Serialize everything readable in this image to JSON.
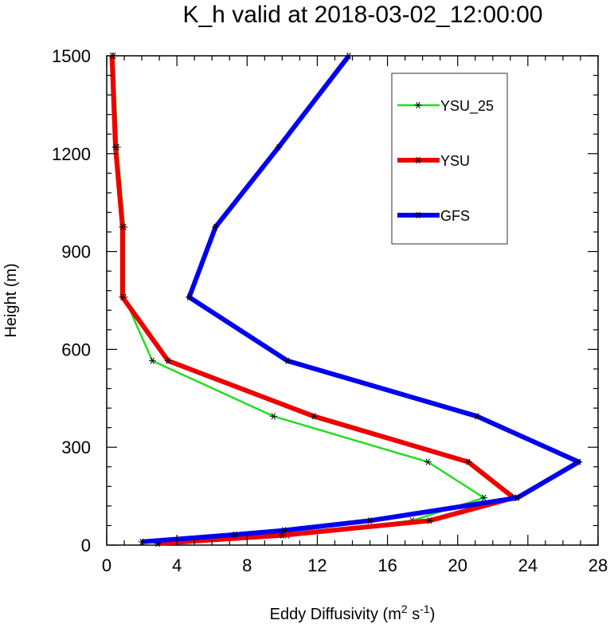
{
  "chart_data": {
    "type": "line",
    "title": "K_h valid at 2018-03-02_12:00:00",
    "xlabel_main": "Eddy Diffusivity (m",
    "xlabel_sup1": "2",
    "xlabel_mid": " s",
    "xlabel_sup2": "-1",
    "xlabel_end": ")",
    "ylabel": "Height (m)",
    "xlim": [
      0,
      28
    ],
    "ylim": [
      0,
      1500
    ],
    "xticks": [
      0,
      4,
      8,
      12,
      16,
      20,
      24,
      28
    ],
    "xtick_labels": [
      "0",
      "4",
      "8",
      "12",
      "16",
      "20",
      "24",
      "28"
    ],
    "yticks": [
      0,
      300,
      600,
      900,
      1200,
      1500
    ],
    "ytick_labels": [
      "0",
      "300",
      "600",
      "900",
      "1200",
      "1500"
    ],
    "legend_position": "top-right",
    "series": [
      {
        "name": "YSU_25",
        "color": "#22dd22",
        "width": "thin",
        "marker": "asterisk",
        "points": [
          [
            2.9,
            5
          ],
          [
            10.3,
            30
          ],
          [
            17.4,
            75
          ],
          [
            21.5,
            145
          ],
          [
            18.3,
            255
          ],
          [
            9.5,
            395
          ],
          [
            2.6,
            565
          ],
          [
            1.0,
            760
          ],
          [
            1.0,
            975
          ],
          [
            0.6,
            1220
          ],
          [
            0.4,
            1500
          ]
        ]
      },
      {
        "name": "YSU",
        "color": "#ee0000",
        "width": "thick",
        "marker": "asterisk",
        "points": [
          [
            2.9,
            5
          ],
          [
            10.0,
            30
          ],
          [
            18.4,
            75
          ],
          [
            23.2,
            145
          ],
          [
            20.6,
            255
          ],
          [
            11.8,
            395
          ],
          [
            3.5,
            565
          ],
          [
            0.9,
            760
          ],
          [
            0.9,
            975
          ],
          [
            0.5,
            1220
          ],
          [
            0.3,
            1500
          ]
        ]
      },
      {
        "name": "GFS",
        "color": "#0000ee",
        "width": "thick",
        "marker": "asterisk",
        "points": [
          [
            2.0,
            10
          ],
          [
            7.3,
            32
          ],
          [
            10.1,
            45
          ],
          [
            15.0,
            75
          ],
          [
            23.4,
            145
          ],
          [
            26.9,
            255
          ],
          [
            21.1,
            395
          ],
          [
            10.3,
            565
          ],
          [
            4.7,
            760
          ],
          [
            6.2,
            975
          ],
          [
            9.8,
            1220
          ],
          [
            13.8,
            1500
          ]
        ]
      }
    ]
  }
}
